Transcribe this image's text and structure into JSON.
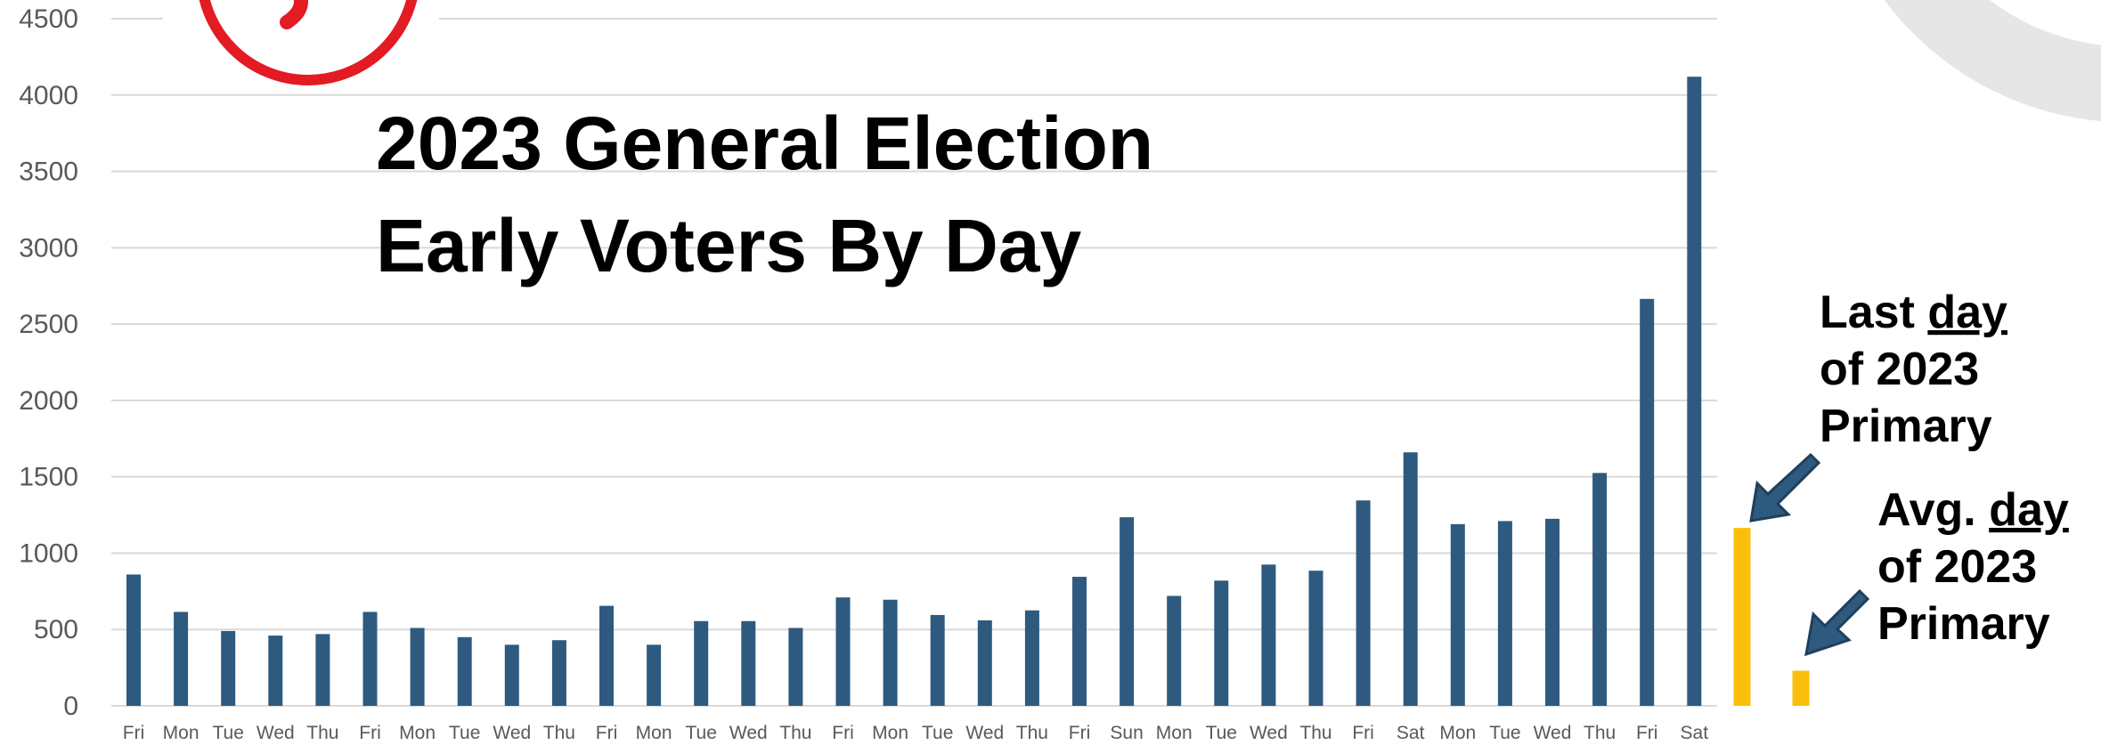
{
  "chart_data": {
    "type": "bar",
    "title_lines": [
      "2023 General Election",
      "Early Voters By Day"
    ],
    "xlabel": "",
    "ylabel": "",
    "ylim": [
      0,
      4500
    ],
    "yticks": [
      0,
      500,
      1000,
      1500,
      2000,
      2500,
      3000,
      3500,
      4000,
      4500
    ],
    "grid": true,
    "categories": [
      "Fri",
      "Mon",
      "Tue",
      "Wed",
      "Thu",
      "Fri",
      "Mon",
      "Tue",
      "Wed",
      "Thu",
      "Fri",
      "Mon",
      "Tue",
      "Wed",
      "Thu",
      "Fri",
      "Mon",
      "Tue",
      "Wed",
      "Thu",
      "Fri",
      "Sun",
      "Mon",
      "Tue",
      "Wed",
      "Thu",
      "Fri",
      "Sat",
      "Mon",
      "Tue",
      "Wed",
      "Thu",
      "Fri",
      "Sat"
    ],
    "values": [
      860,
      615,
      490,
      460,
      470,
      615,
      510,
      450,
      400,
      430,
      655,
      400,
      555,
      555,
      510,
      710,
      695,
      595,
      560,
      625,
      845,
      1235,
      720,
      820,
      925,
      885,
      1345,
      1660,
      1190,
      1210,
      1225,
      1525,
      2665,
      4120
    ],
    "bar_color": "#2e5a7f",
    "comparison": [
      {
        "label_lines": [
          "Last ",
          "day",
          "of 2023",
          "Primary"
        ],
        "value": 1165,
        "color": "#fbbf0b"
      },
      {
        "label_lines": [
          "Avg. ",
          "day",
          "of 2023",
          "Primary"
        ],
        "value": 230,
        "color": "#fbbf0b"
      }
    ],
    "arrow_color": "#2e5a7f"
  },
  "decor": {
    "logo_color": "#e31b23",
    "watermark_color": "#e6e6e6"
  }
}
